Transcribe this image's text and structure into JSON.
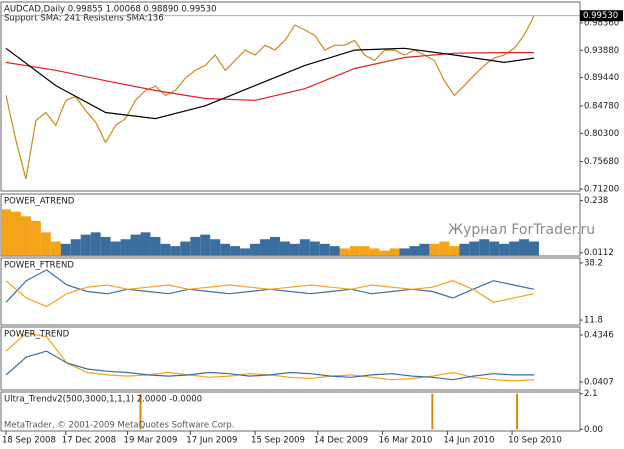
{
  "chart_data": [
    {
      "type": "line",
      "title": "AUDCAD,Daily  0.99855 1.00068 0.98890 0.99530",
      "subtitle": "Support SMA: 241 Resistens SMA:136",
      "xlim": [
        0,
        53
      ],
      "xticks": [
        {
          "value": 0,
          "label": "18 Sep 2008"
        },
        {
          "value": 6,
          "label": "17 Dec 2008"
        },
        {
          "value": 12.2,
          "label": "19 Mar 2009"
        },
        {
          "value": 18.5,
          "label": "17 Jun 2009"
        },
        {
          "value": 25,
          "label": "15 Sep 2009"
        },
        {
          "value": 31.3,
          "label": "14 Dec 2009"
        },
        {
          "value": 37.8,
          "label": "16 Mar 2010"
        },
        {
          "value": 44.3,
          "label": "14 Jun 2010"
        },
        {
          "value": 50.8,
          "label": "10 Sep 2010"
        }
      ],
      "ylim": [
        0.7087,
        1.0177
      ],
      "yticks": [
        {
          "value": 0.9836,
          "label": "0.98360"
        },
        {
          "value": 0.9388,
          "label": "0.93880"
        },
        {
          "value": 0.8944,
          "label": "0.89440"
        },
        {
          "value": 0.8478,
          "label": "0.84780"
        },
        {
          "value": 0.803,
          "label": "0.80300"
        },
        {
          "value": 0.7568,
          "label": "0.75680"
        },
        {
          "value": 0.712,
          "label": "0.71200"
        }
      ],
      "last_price": {
        "value": 0.9953,
        "label": "0.99530"
      },
      "series": [
        {
          "color": "#c88c1a",
          "values": [
            0.865,
            0.791,
            0.7285,
            0.824,
            0.837,
            0.816,
            0.857,
            0.863,
            0.84,
            0.821,
            0.788,
            0.816,
            0.827,
            0.857,
            0.873,
            0.88,
            0.865,
            0.873,
            0.893,
            0.906,
            0.914,
            0.931,
            0.906,
            0.922,
            0.939,
            0.931,
            0.947,
            0.939,
            0.955,
            0.98,
            0.972,
            0.963,
            0.939,
            0.947,
            0.947,
            0.955,
            0.931,
            0.922,
            0.939,
            0.939,
            0.931,
            0.939,
            0.931,
            0.922,
            0.889,
            0.865,
            0.881,
            0.898,
            0.914,
            0.926,
            0.931,
            0.942,
            0.963,
            0.995
          ]
        },
        {
          "color": "#e02020",
          "x": [
            0,
            5,
            10,
            15,
            20,
            25,
            30,
            35,
            40,
            45,
            50,
            53
          ],
          "values": [
            0.919,
            0.906,
            0.889,
            0.873,
            0.86,
            0.857,
            0.876,
            0.909,
            0.927,
            0.934,
            0.935,
            0.935
          ]
        },
        {
          "color": "#000000",
          "x": [
            0,
            5,
            10,
            15,
            20,
            25,
            30,
            35,
            40,
            45,
            50,
            53
          ],
          "values": [
            0.942,
            0.881,
            0.837,
            0.827,
            0.848,
            0.881,
            0.914,
            0.939,
            0.942,
            0.931,
            0.919,
            0.926
          ]
        }
      ]
    },
    {
      "type": "bar",
      "title": "POWER_ATREND",
      "annotation": "Журнал ForTrader.ru",
      "ylim": [
        -0.003,
        0.267
      ],
      "yticks": [
        0.238,
        0.0112
      ],
      "series": [
        {
          "color": "#f5a319",
          "values": [
            0.2,
            0.19,
            0.17,
            0.15,
            0.1,
            0.06,
            null,
            null,
            null,
            null,
            null,
            null,
            null,
            null,
            null,
            null,
            null,
            null,
            null,
            null,
            null,
            null,
            null,
            null,
            null,
            null,
            null,
            null,
            null,
            null,
            null,
            null,
            null,
            null,
            0.03,
            0.04,
            0.04,
            0.03,
            0.02,
            0.03,
            null,
            null,
            null,
            0.05,
            0.06,
            0.04,
            null,
            null,
            null,
            null,
            null,
            null,
            null,
            null
          ]
        },
        {
          "color": "#3a6e9f",
          "values": [
            null,
            null,
            null,
            null,
            null,
            null,
            0.05,
            0.07,
            0.09,
            0.1,
            0.08,
            0.06,
            0.07,
            0.09,
            0.1,
            0.08,
            0.05,
            0.04,
            0.06,
            0.08,
            0.09,
            0.07,
            0.05,
            0.04,
            0.03,
            0.05,
            0.07,
            0.08,
            0.06,
            0.05,
            0.07,
            0.06,
            0.05,
            0.04,
            null,
            null,
            null,
            null,
            null,
            null,
            0.03,
            0.04,
            0.05,
            null,
            null,
            null,
            0.05,
            0.06,
            0.07,
            0.06,
            0.05,
            0.06,
            0.07,
            0.06
          ]
        }
      ]
    },
    {
      "type": "line",
      "title": "POWER_FTREND",
      "ylim": [
        9.5,
        40.5
      ],
      "yticks": [
        38.2,
        11.8
      ],
      "series": [
        {
          "color": "#3a6e9f",
          "values": [
            20,
            30,
            35,
            28,
            25,
            24,
            26,
            25,
            24,
            26,
            25,
            24,
            25,
            26,
            25,
            24,
            25,
            26,
            24,
            25,
            26,
            25,
            22,
            26,
            30,
            28,
            26
          ]
        },
        {
          "color": "#f5a319",
          "values": [
            30,
            22,
            18,
            24,
            27,
            28,
            26,
            27,
            28,
            26,
            27,
            28,
            27,
            26,
            27,
            28,
            27,
            26,
            28,
            27,
            26,
            27,
            30,
            26,
            20,
            22,
            24
          ]
        }
      ]
    },
    {
      "type": "line",
      "title": "POWER_TREND",
      "ylim": [
        -0.0264,
        0.5017
      ],
      "yticks": [
        0.4346,
        0.0407
      ],
      "series": [
        {
          "color": "#f5a319",
          "values": [
            0.3,
            0.45,
            0.42,
            0.2,
            0.12,
            0.1,
            0.09,
            0.1,
            0.12,
            0.1,
            0.08,
            0.09,
            0.11,
            0.1,
            0.08,
            0.07,
            0.09,
            0.1,
            0.08,
            0.06,
            0.07,
            0.09,
            0.12,
            0.08,
            0.06,
            0.05,
            0.06
          ]
        },
        {
          "color": "#3a6e9f",
          "values": [
            0.1,
            0.25,
            0.3,
            0.2,
            0.15,
            0.13,
            0.12,
            0.1,
            0.09,
            0.1,
            0.12,
            0.11,
            0.09,
            0.1,
            0.12,
            0.11,
            0.09,
            0.08,
            0.1,
            0.11,
            0.09,
            0.08,
            0.06,
            0.09,
            0.11,
            0.1,
            0.1
          ]
        }
      ]
    },
    {
      "type": "spike",
      "title": "Ultra_Trendv2(500,3000,1,1,1) 2.0000 -0.0000",
      "annotation": "MetaTrader, © 2001-2009 MetaQuotes Software Corp.",
      "ylim": [
        -0.1,
        2.2
      ],
      "yticks": [
        2.1,
        {
          "value": 0,
          "label": "0.00"
        }
      ],
      "color": "#d08a10",
      "x": [
        13.5,
        42.8,
        51.3
      ],
      "values": [
        2.1,
        2.1,
        2.1
      ]
    }
  ]
}
